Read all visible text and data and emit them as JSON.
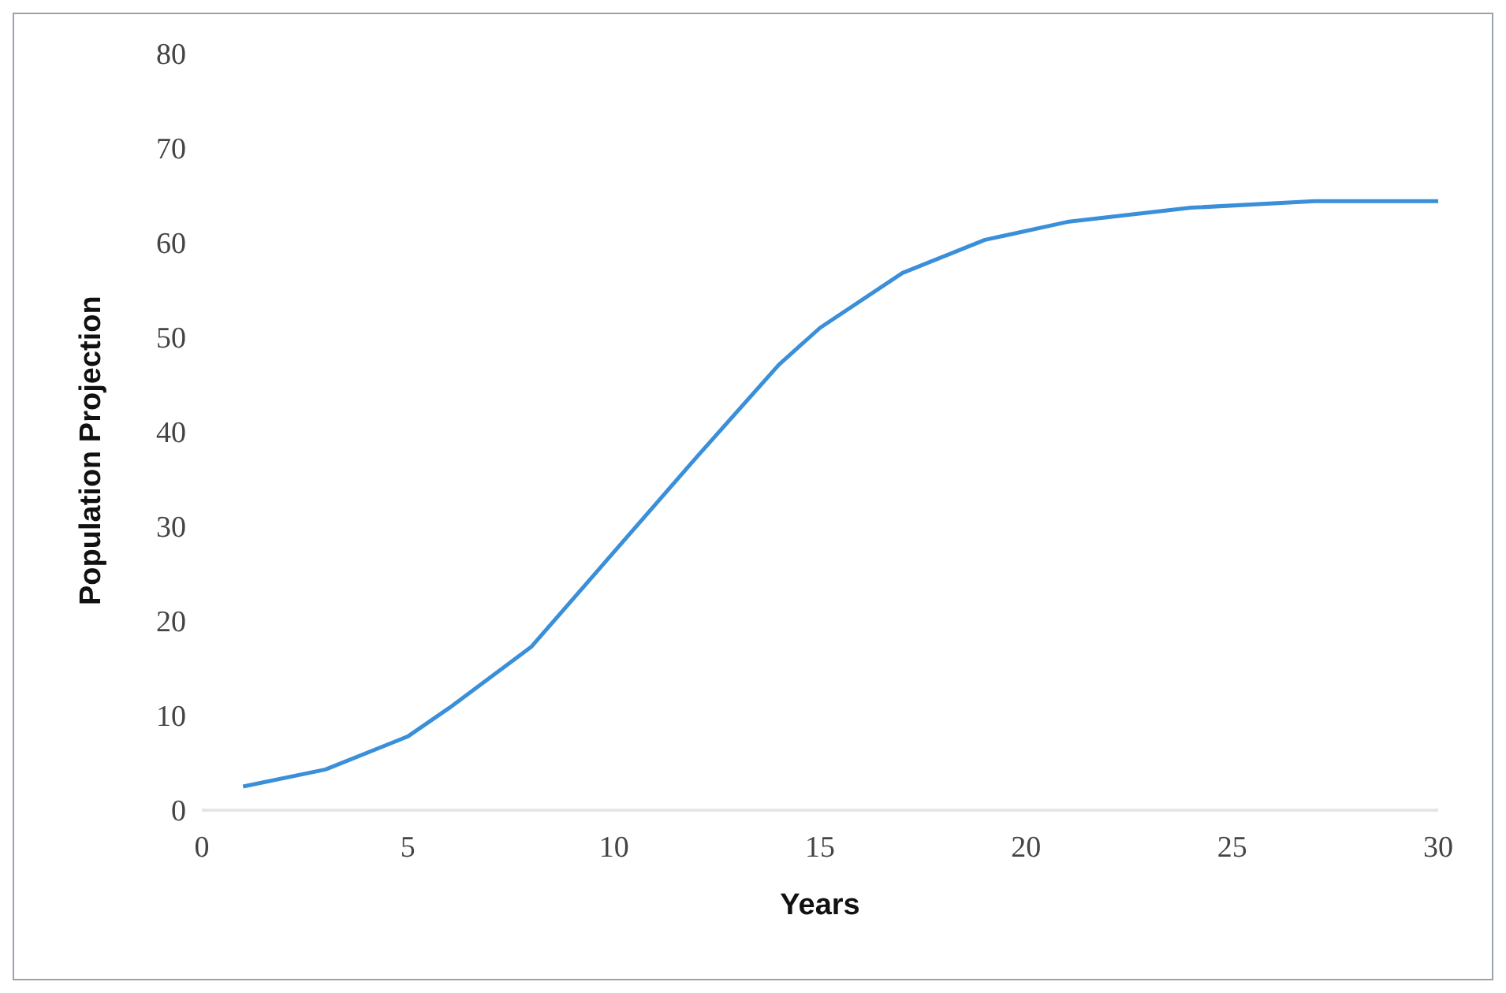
{
  "chart_data": {
    "type": "line",
    "xlabel": "Years",
    "ylabel": "Population Projection",
    "x": [
      1,
      3,
      5,
      6,
      8,
      10,
      12,
      14,
      15,
      17,
      19,
      21,
      24,
      27,
      30
    ],
    "series": [
      {
        "color": "#3a8fd9",
        "values": [
          2.5,
          4.3,
          7.8,
          10.8,
          17.3,
          27.3,
          37.3,
          47.1,
          51,
          56.8,
          60.3,
          62.2,
          63.7,
          64.4,
          64.4
        ]
      }
    ],
    "xlim": [
      0,
      30
    ],
    "xticks": [
      0,
      5,
      10,
      15,
      20,
      25,
      30
    ],
    "ylim": [
      0,
      80
    ],
    "yticks": [
      0,
      10,
      20,
      30,
      40,
      50,
      60,
      70,
      80
    ],
    "grid": false,
    "legend": false,
    "marker": "none",
    "line_style": "solid"
  }
}
